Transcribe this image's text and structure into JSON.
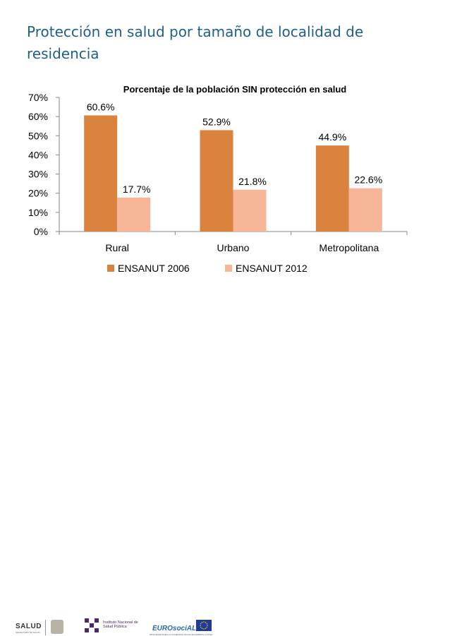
{
  "slide": {
    "title": "Protección en salud por tamaño de localidad de residencia"
  },
  "chart_data": {
    "type": "bar",
    "title": "Porcentaje de la población SIN protección en salud",
    "categories": [
      "Rural",
      "Urbano",
      "Metropolitana"
    ],
    "series": [
      {
        "name": "ENSANUT 2006",
        "values": [
          60.6,
          52.9,
          44.9
        ],
        "labels": [
          "60.6%",
          "52.9%",
          "44.9%"
        ],
        "color": "#d9833f"
      },
      {
        "name": "ENSANUT 2012",
        "values": [
          17.7,
          21.8,
          22.6
        ],
        "labels": [
          "17.7%",
          "21.8%",
          "22.6%"
        ],
        "color": "#f6b697"
      }
    ],
    "ylim": [
      0,
      70
    ],
    "yticks": [
      0,
      10,
      20,
      30,
      40,
      50,
      60,
      70
    ],
    "ytick_labels": [
      "0%",
      "10%",
      "20%",
      "30%",
      "40%",
      "50%",
      "60%",
      "70%"
    ],
    "xlabel": "",
    "ylabel": "",
    "grid": false,
    "legend_position": "bottom"
  },
  "footer": {
    "salud_logo": "SALUD",
    "salud_sub": "SECRETARÍA DE SALUD",
    "insp_logo": "Instituto Nacional de Salud Pública",
    "eurosocial_logo": "EUROsociAL",
    "eurosocial_sub": "PROGRAMA PARA LA COHESIÓN SOCIAL EN AMÉRICA LATINA",
    "colors": {
      "insp": "#4a2a66",
      "euro": "#2a6aa8",
      "eu_flag": "#1f3c99",
      "eu_stars": "#f2c500"
    }
  }
}
